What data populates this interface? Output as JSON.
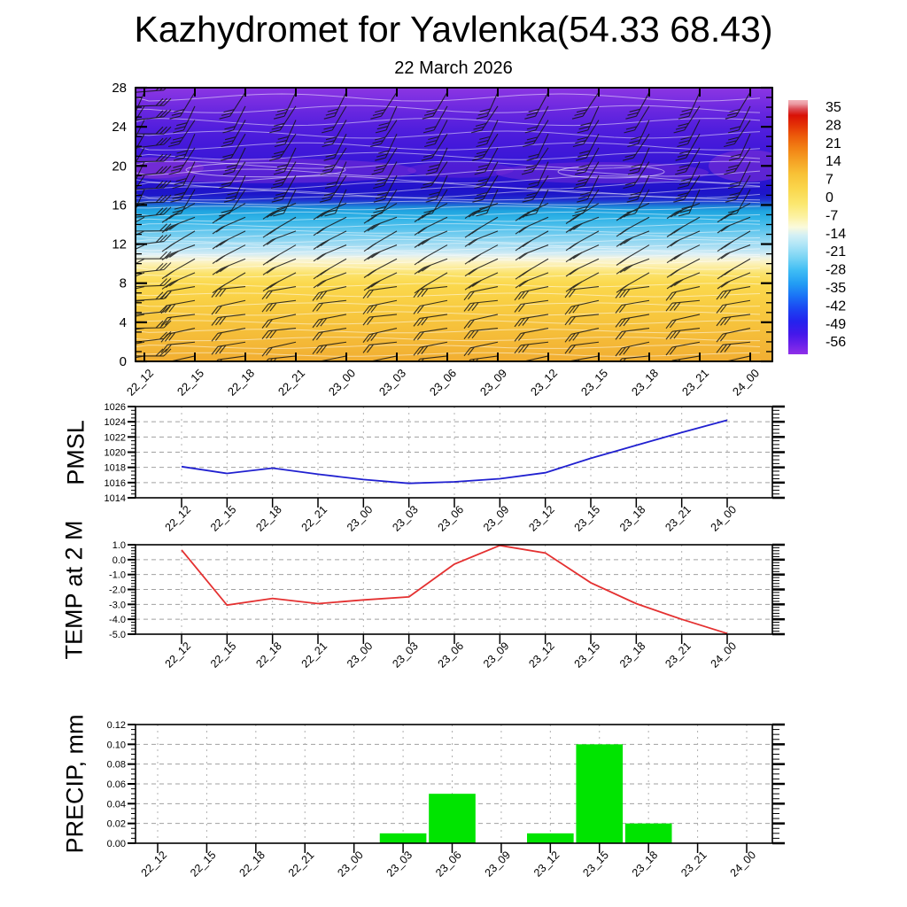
{
  "title": "Kazhydromet for Yavlenka(54.33 68.43)",
  "subtitle": "22 March 2026",
  "times": [
    "22_12",
    "22_15",
    "22_18",
    "22_21",
    "23_00",
    "23_03",
    "23_06",
    "23_09",
    "23_12",
    "23_15",
    "23_18",
    "23_21",
    "24_00"
  ],
  "colorbar": {
    "labels": [
      "35",
      "28",
      "21",
      "14",
      "7",
      "0",
      "-7",
      "-14",
      "-21",
      "-28",
      "-35",
      "-42",
      "-49",
      "-56"
    ],
    "gradient": [
      [
        0.0,
        "#9030e8"
      ],
      [
        0.04,
        "#6a20ea"
      ],
      [
        0.08,
        "#4418ea"
      ],
      [
        0.13,
        "#2423ee"
      ],
      [
        0.18,
        "#1b46f2"
      ],
      [
        0.23,
        "#1a73f6"
      ],
      [
        0.28,
        "#239ef4"
      ],
      [
        0.33,
        "#3fbdf4"
      ],
      [
        0.38,
        "#79d4f4"
      ],
      [
        0.43,
        "#aee5f7"
      ],
      [
        0.47,
        "#d5f0f4"
      ],
      [
        0.5,
        "#fbfadc"
      ],
      [
        0.54,
        "#fcf2a4"
      ],
      [
        0.59,
        "#fbe871"
      ],
      [
        0.65,
        "#fad74d"
      ],
      [
        0.71,
        "#f8c136"
      ],
      [
        0.76,
        "#f5a325"
      ],
      [
        0.81,
        "#f28214"
      ],
      [
        0.86,
        "#ec5a0a"
      ],
      [
        0.9,
        "#e43306"
      ],
      [
        0.94,
        "#d91106"
      ],
      [
        0.965,
        "#db4c55"
      ],
      [
        0.985,
        "#eb9aa2"
      ],
      [
        1.0,
        "#f2b3ba"
      ]
    ]
  },
  "chart_data": [
    {
      "type": "heatmap",
      "name": "temperature-wind-cross-section",
      "title": "",
      "x": [
        "22_12",
        "22_15",
        "22_18",
        "22_21",
        "23_00",
        "23_03",
        "23_06",
        "23_09",
        "23_12",
        "23_15",
        "23_18",
        "23_21",
        "24_00"
      ],
      "ylim": [
        0,
        28
      ],
      "y_ticks": [
        "0",
        "4",
        "8",
        "12",
        "16",
        "20",
        "24",
        "28"
      ],
      "colorbar_ticks": [
        35,
        28,
        21,
        14,
        7,
        0,
        -7,
        -14,
        -21,
        -28,
        -35,
        -42,
        -49,
        -56
      ],
      "legend_position": "right",
      "grid": false,
      "fill_gradient_bottom_to_top": [
        [
          0.0,
          "#f1ae32"
        ],
        [
          0.1,
          "#f5bd39"
        ],
        [
          0.2,
          "#f8cc41"
        ],
        [
          0.285,
          "#fbd94e"
        ],
        [
          0.32,
          "#fbe26a"
        ],
        [
          0.345,
          "#fceda0"
        ],
        [
          0.365,
          "#fbf3c8"
        ],
        [
          0.379,
          "#eff3e2"
        ],
        [
          0.392,
          "#d4ecf4"
        ],
        [
          0.42,
          "#a9def3"
        ],
        [
          0.455,
          "#7dd0f0"
        ],
        [
          0.49,
          "#51c0ec"
        ],
        [
          0.525,
          "#2fb2e6"
        ],
        [
          0.55,
          "#1fa3e0"
        ],
        [
          0.565,
          "#1d86d8"
        ],
        [
          0.578,
          "#1e55d2"
        ],
        [
          0.59,
          "#2030d0"
        ],
        [
          0.61,
          "#1d17c9"
        ],
        [
          0.63,
          "#2013cb"
        ],
        [
          0.66,
          "#2a14d0"
        ],
        [
          0.7,
          "#3314d4"
        ],
        [
          0.74,
          "#3a17d7"
        ],
        [
          0.79,
          "#4419da"
        ],
        [
          0.85,
          "#511edd"
        ],
        [
          0.92,
          "#6b28e0"
        ],
        [
          1.0,
          "#8c36e3"
        ]
      ],
      "contour_color": "#ffffff",
      "barb_color": "#151515",
      "barb_columns": 13,
      "barb_levels": 20
    },
    {
      "type": "line",
      "name": "pmsl",
      "title": "PMSL",
      "x": [
        "22_12",
        "22_15",
        "22_18",
        "22_21",
        "23_00",
        "23_03",
        "23_06",
        "23_09",
        "23_12",
        "23_15",
        "23_18",
        "23_21",
        "24_00"
      ],
      "values": [
        1018.1,
        1017.2,
        1017.9,
        1017.1,
        1016.4,
        1015.9,
        1016.1,
        1016.5,
        1017.3,
        1019.2,
        1020.9,
        1022.6,
        1024.2
      ],
      "ylim": [
        1014,
        1026
      ],
      "yticks": [
        1014,
        1016,
        1018,
        1020,
        1022,
        1024,
        1026
      ],
      "ytick_labels": [
        "1014",
        "1016",
        "1018",
        "1020",
        "1022",
        "1024",
        "1026"
      ],
      "line_color": "#2020d0",
      "grid": true
    },
    {
      "type": "line",
      "name": "temp-2m",
      "title": "TEMP at 2 M",
      "x": [
        "22_12",
        "22_15",
        "22_18",
        "22_21",
        "23_00",
        "23_03",
        "23_06",
        "23_09",
        "23_12",
        "23_15",
        "23_18",
        "23_21",
        "24_00"
      ],
      "values": [
        0.65,
        -3.05,
        -2.6,
        -2.95,
        -2.7,
        -2.5,
        -0.3,
        0.95,
        0.45,
        -1.55,
        -2.95,
        -4.0,
        -4.95
      ],
      "ylim": [
        -5,
        1
      ],
      "yticks": [
        -5,
        -4,
        -3,
        -2,
        -1,
        0,
        1
      ],
      "ytick_labels": [
        "-5.0",
        "-4.0",
        "-3.0",
        "-2.0",
        "-1.0",
        "0.0",
        "1.0"
      ],
      "line_color": "#e43030",
      "grid": true
    },
    {
      "type": "bar",
      "name": "precip",
      "title": "PRECIP, mm",
      "x": [
        "22_12",
        "22_15",
        "22_18",
        "22_21",
        "23_00",
        "23_03",
        "23_06",
        "23_09",
        "23_12",
        "23_15",
        "23_18",
        "23_21",
        "24_00"
      ],
      "values": [
        0,
        0,
        0,
        0,
        0,
        0.01,
        0.05,
        0,
        0.01,
        0.1,
        0.02,
        0,
        0
      ],
      "ylim": [
        0,
        0.12
      ],
      "yticks": [
        0,
        0.02,
        0.04,
        0.06,
        0.08,
        0.1,
        0.12
      ],
      "ytick_labels": [
        "0.00",
        "0.02",
        "0.04",
        "0.06",
        "0.08",
        "0.10",
        "0.12"
      ],
      "bar_color": "#00e400",
      "grid": true
    }
  ]
}
